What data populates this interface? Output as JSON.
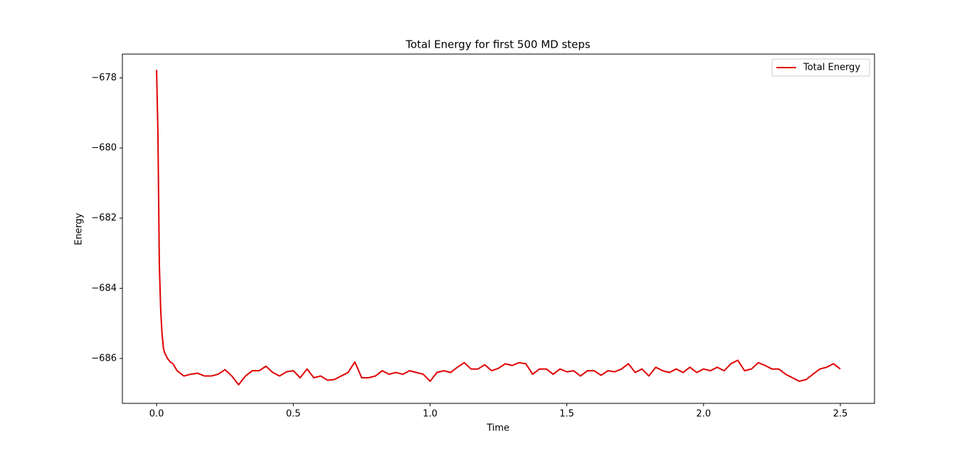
{
  "chart_data": {
    "type": "line",
    "title": "Total Energy for first 500 MD steps",
    "x_label": "Time",
    "y_label": "Energy",
    "xlim": [
      -0.125,
      2.625
    ],
    "ylim": [
      -687.28,
      -677.32
    ],
    "xticks": [
      {
        "value": 0,
        "label": "0.0"
      },
      0.5,
      {
        "value": 1,
        "label": "1.0"
      },
      1.5,
      {
        "value": 2,
        "label": "2.0"
      },
      2.5
    ],
    "yticks": [
      {
        "value": -678,
        "label": "−678"
      },
      {
        "value": -680,
        "label": "−680"
      },
      {
        "value": -682,
        "label": "−682"
      },
      {
        "value": -684,
        "label": "−684"
      },
      {
        "value": -686,
        "label": "−686"
      }
    ],
    "legend": "upper right",
    "grid": false,
    "x": [
      0,
      0.005,
      0.01,
      0.015,
      0.02,
      0.025,
      0.03,
      0.04,
      0.05,
      0.06,
      0.075,
      0.1,
      0.125,
      0.15,
      0.175,
      0.2,
      0.225,
      0.25,
      0.275,
      0.3,
      0.325,
      0.35,
      0.375,
      0.4,
      0.425,
      0.45,
      0.475,
      0.5,
      0.525,
      0.55,
      0.575,
      0.6,
      0.625,
      0.65,
      0.675,
      0.7,
      0.725,
      0.75,
      0.775,
      0.8,
      0.825,
      0.85,
      0.875,
      0.9,
      0.925,
      0.95,
      0.975,
      1.0,
      1.025,
      1.05,
      1.075,
      1.1,
      1.125,
      1.15,
      1.175,
      1.2,
      1.225,
      1.25,
      1.275,
      1.3,
      1.325,
      1.35,
      1.375,
      1.4,
      1.425,
      1.45,
      1.475,
      1.5,
      1.525,
      1.55,
      1.575,
      1.6,
      1.625,
      1.65,
      1.675,
      1.7,
      1.725,
      1.75,
      1.775,
      1.8,
      1.825,
      1.85,
      1.875,
      1.9,
      1.925,
      1.95,
      1.975,
      2.0,
      2.025,
      2.05,
      2.075,
      2.1,
      2.125,
      2.15,
      2.175,
      2.2,
      2.225,
      2.25,
      2.275,
      2.3,
      2.325,
      2.35,
      2.375,
      2.4,
      2.425,
      2.45,
      2.475,
      2.5
    ],
    "series": [
      {
        "name": "Total Energy",
        "color": "#e00000",
        "values": [
          -677.77,
          -679.6,
          -683.3,
          -684.6,
          -685.3,
          -685.7,
          -685.85,
          -686.0,
          -686.1,
          -686.15,
          -686.35,
          -686.5,
          -686.45,
          -686.42,
          -686.5,
          -686.5,
          -686.45,
          -686.32,
          -686.5,
          -686.75,
          -686.5,
          -686.35,
          -686.35,
          -686.22,
          -686.4,
          -686.5,
          -686.38,
          -686.35,
          -686.55,
          -686.3,
          -686.55,
          -686.5,
          -686.62,
          -686.6,
          -686.5,
          -686.4,
          -686.1,
          -686.55,
          -686.55,
          -686.5,
          -686.35,
          -686.45,
          -686.4,
          -686.45,
          -686.35,
          -686.4,
          -686.45,
          -686.65,
          -686.4,
          -686.35,
          -686.4,
          -686.25,
          -686.12,
          -686.3,
          -686.3,
          -686.18,
          -686.35,
          -686.28,
          -686.15,
          -686.2,
          -686.12,
          -686.15,
          -686.45,
          -686.3,
          -686.3,
          -686.45,
          -686.3,
          -686.38,
          -686.35,
          -686.5,
          -686.35,
          -686.35,
          -686.48,
          -686.35,
          -686.38,
          -686.3,
          -686.15,
          -686.4,
          -686.3,
          -686.5,
          -686.25,
          -686.35,
          -686.4,
          -686.3,
          -686.4,
          -686.25,
          -686.4,
          -686.3,
          -686.35,
          -686.25,
          -686.35,
          -686.15,
          -686.05,
          -686.35,
          -686.3,
          -686.12,
          -686.2,
          -686.3,
          -686.3,
          -686.45,
          -686.55,
          -686.65,
          -686.6,
          -686.45,
          -686.3,
          -686.25,
          -686.15,
          -686.3
        ]
      }
    ]
  }
}
